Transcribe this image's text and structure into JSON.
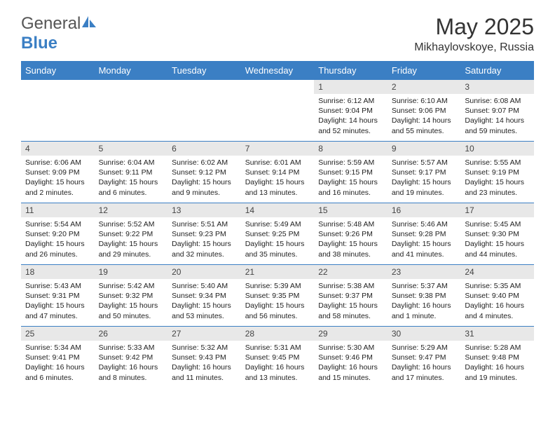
{
  "logo": {
    "text1": "General",
    "text2": "Blue"
  },
  "title": "May 2025",
  "location": "Mikhaylovskoye, Russia",
  "colors": {
    "header_bg": "#3b7fc4",
    "header_fg": "#ffffff",
    "daynum_bg": "#e8e8e8",
    "rule": "#3b7fc4",
    "logo_gray": "#555555",
    "logo_blue": "#3b7fc4"
  },
  "weekdays": [
    "Sunday",
    "Monday",
    "Tuesday",
    "Wednesday",
    "Thursday",
    "Friday",
    "Saturday"
  ],
  "weeks": [
    [
      null,
      null,
      null,
      null,
      {
        "n": "1",
        "sr": "Sunrise: 6:12 AM",
        "ss": "Sunset: 9:04 PM",
        "d1": "Daylight: 14 hours",
        "d2": "and 52 minutes."
      },
      {
        "n": "2",
        "sr": "Sunrise: 6:10 AM",
        "ss": "Sunset: 9:06 PM",
        "d1": "Daylight: 14 hours",
        "d2": "and 55 minutes."
      },
      {
        "n": "3",
        "sr": "Sunrise: 6:08 AM",
        "ss": "Sunset: 9:07 PM",
        "d1": "Daylight: 14 hours",
        "d2": "and 59 minutes."
      }
    ],
    [
      {
        "n": "4",
        "sr": "Sunrise: 6:06 AM",
        "ss": "Sunset: 9:09 PM",
        "d1": "Daylight: 15 hours",
        "d2": "and 2 minutes."
      },
      {
        "n": "5",
        "sr": "Sunrise: 6:04 AM",
        "ss": "Sunset: 9:11 PM",
        "d1": "Daylight: 15 hours",
        "d2": "and 6 minutes."
      },
      {
        "n": "6",
        "sr": "Sunrise: 6:02 AM",
        "ss": "Sunset: 9:12 PM",
        "d1": "Daylight: 15 hours",
        "d2": "and 9 minutes."
      },
      {
        "n": "7",
        "sr": "Sunrise: 6:01 AM",
        "ss": "Sunset: 9:14 PM",
        "d1": "Daylight: 15 hours",
        "d2": "and 13 minutes."
      },
      {
        "n": "8",
        "sr": "Sunrise: 5:59 AM",
        "ss": "Sunset: 9:15 PM",
        "d1": "Daylight: 15 hours",
        "d2": "and 16 minutes."
      },
      {
        "n": "9",
        "sr": "Sunrise: 5:57 AM",
        "ss": "Sunset: 9:17 PM",
        "d1": "Daylight: 15 hours",
        "d2": "and 19 minutes."
      },
      {
        "n": "10",
        "sr": "Sunrise: 5:55 AM",
        "ss": "Sunset: 9:19 PM",
        "d1": "Daylight: 15 hours",
        "d2": "and 23 minutes."
      }
    ],
    [
      {
        "n": "11",
        "sr": "Sunrise: 5:54 AM",
        "ss": "Sunset: 9:20 PM",
        "d1": "Daylight: 15 hours",
        "d2": "and 26 minutes."
      },
      {
        "n": "12",
        "sr": "Sunrise: 5:52 AM",
        "ss": "Sunset: 9:22 PM",
        "d1": "Daylight: 15 hours",
        "d2": "and 29 minutes."
      },
      {
        "n": "13",
        "sr": "Sunrise: 5:51 AM",
        "ss": "Sunset: 9:23 PM",
        "d1": "Daylight: 15 hours",
        "d2": "and 32 minutes."
      },
      {
        "n": "14",
        "sr": "Sunrise: 5:49 AM",
        "ss": "Sunset: 9:25 PM",
        "d1": "Daylight: 15 hours",
        "d2": "and 35 minutes."
      },
      {
        "n": "15",
        "sr": "Sunrise: 5:48 AM",
        "ss": "Sunset: 9:26 PM",
        "d1": "Daylight: 15 hours",
        "d2": "and 38 minutes."
      },
      {
        "n": "16",
        "sr": "Sunrise: 5:46 AM",
        "ss": "Sunset: 9:28 PM",
        "d1": "Daylight: 15 hours",
        "d2": "and 41 minutes."
      },
      {
        "n": "17",
        "sr": "Sunrise: 5:45 AM",
        "ss": "Sunset: 9:30 PM",
        "d1": "Daylight: 15 hours",
        "d2": "and 44 minutes."
      }
    ],
    [
      {
        "n": "18",
        "sr": "Sunrise: 5:43 AM",
        "ss": "Sunset: 9:31 PM",
        "d1": "Daylight: 15 hours",
        "d2": "and 47 minutes."
      },
      {
        "n": "19",
        "sr": "Sunrise: 5:42 AM",
        "ss": "Sunset: 9:32 PM",
        "d1": "Daylight: 15 hours",
        "d2": "and 50 minutes."
      },
      {
        "n": "20",
        "sr": "Sunrise: 5:40 AM",
        "ss": "Sunset: 9:34 PM",
        "d1": "Daylight: 15 hours",
        "d2": "and 53 minutes."
      },
      {
        "n": "21",
        "sr": "Sunrise: 5:39 AM",
        "ss": "Sunset: 9:35 PM",
        "d1": "Daylight: 15 hours",
        "d2": "and 56 minutes."
      },
      {
        "n": "22",
        "sr": "Sunrise: 5:38 AM",
        "ss": "Sunset: 9:37 PM",
        "d1": "Daylight: 15 hours",
        "d2": "and 58 minutes."
      },
      {
        "n": "23",
        "sr": "Sunrise: 5:37 AM",
        "ss": "Sunset: 9:38 PM",
        "d1": "Daylight: 16 hours",
        "d2": "and 1 minute."
      },
      {
        "n": "24",
        "sr": "Sunrise: 5:35 AM",
        "ss": "Sunset: 9:40 PM",
        "d1": "Daylight: 16 hours",
        "d2": "and 4 minutes."
      }
    ],
    [
      {
        "n": "25",
        "sr": "Sunrise: 5:34 AM",
        "ss": "Sunset: 9:41 PM",
        "d1": "Daylight: 16 hours",
        "d2": "and 6 minutes."
      },
      {
        "n": "26",
        "sr": "Sunrise: 5:33 AM",
        "ss": "Sunset: 9:42 PM",
        "d1": "Daylight: 16 hours",
        "d2": "and 8 minutes."
      },
      {
        "n": "27",
        "sr": "Sunrise: 5:32 AM",
        "ss": "Sunset: 9:43 PM",
        "d1": "Daylight: 16 hours",
        "d2": "and 11 minutes."
      },
      {
        "n": "28",
        "sr": "Sunrise: 5:31 AM",
        "ss": "Sunset: 9:45 PM",
        "d1": "Daylight: 16 hours",
        "d2": "and 13 minutes."
      },
      {
        "n": "29",
        "sr": "Sunrise: 5:30 AM",
        "ss": "Sunset: 9:46 PM",
        "d1": "Daylight: 16 hours",
        "d2": "and 15 minutes."
      },
      {
        "n": "30",
        "sr": "Sunrise: 5:29 AM",
        "ss": "Sunset: 9:47 PM",
        "d1": "Daylight: 16 hours",
        "d2": "and 17 minutes."
      },
      {
        "n": "31",
        "sr": "Sunrise: 5:28 AM",
        "ss": "Sunset: 9:48 PM",
        "d1": "Daylight: 16 hours",
        "d2": "and 19 minutes."
      }
    ]
  ]
}
